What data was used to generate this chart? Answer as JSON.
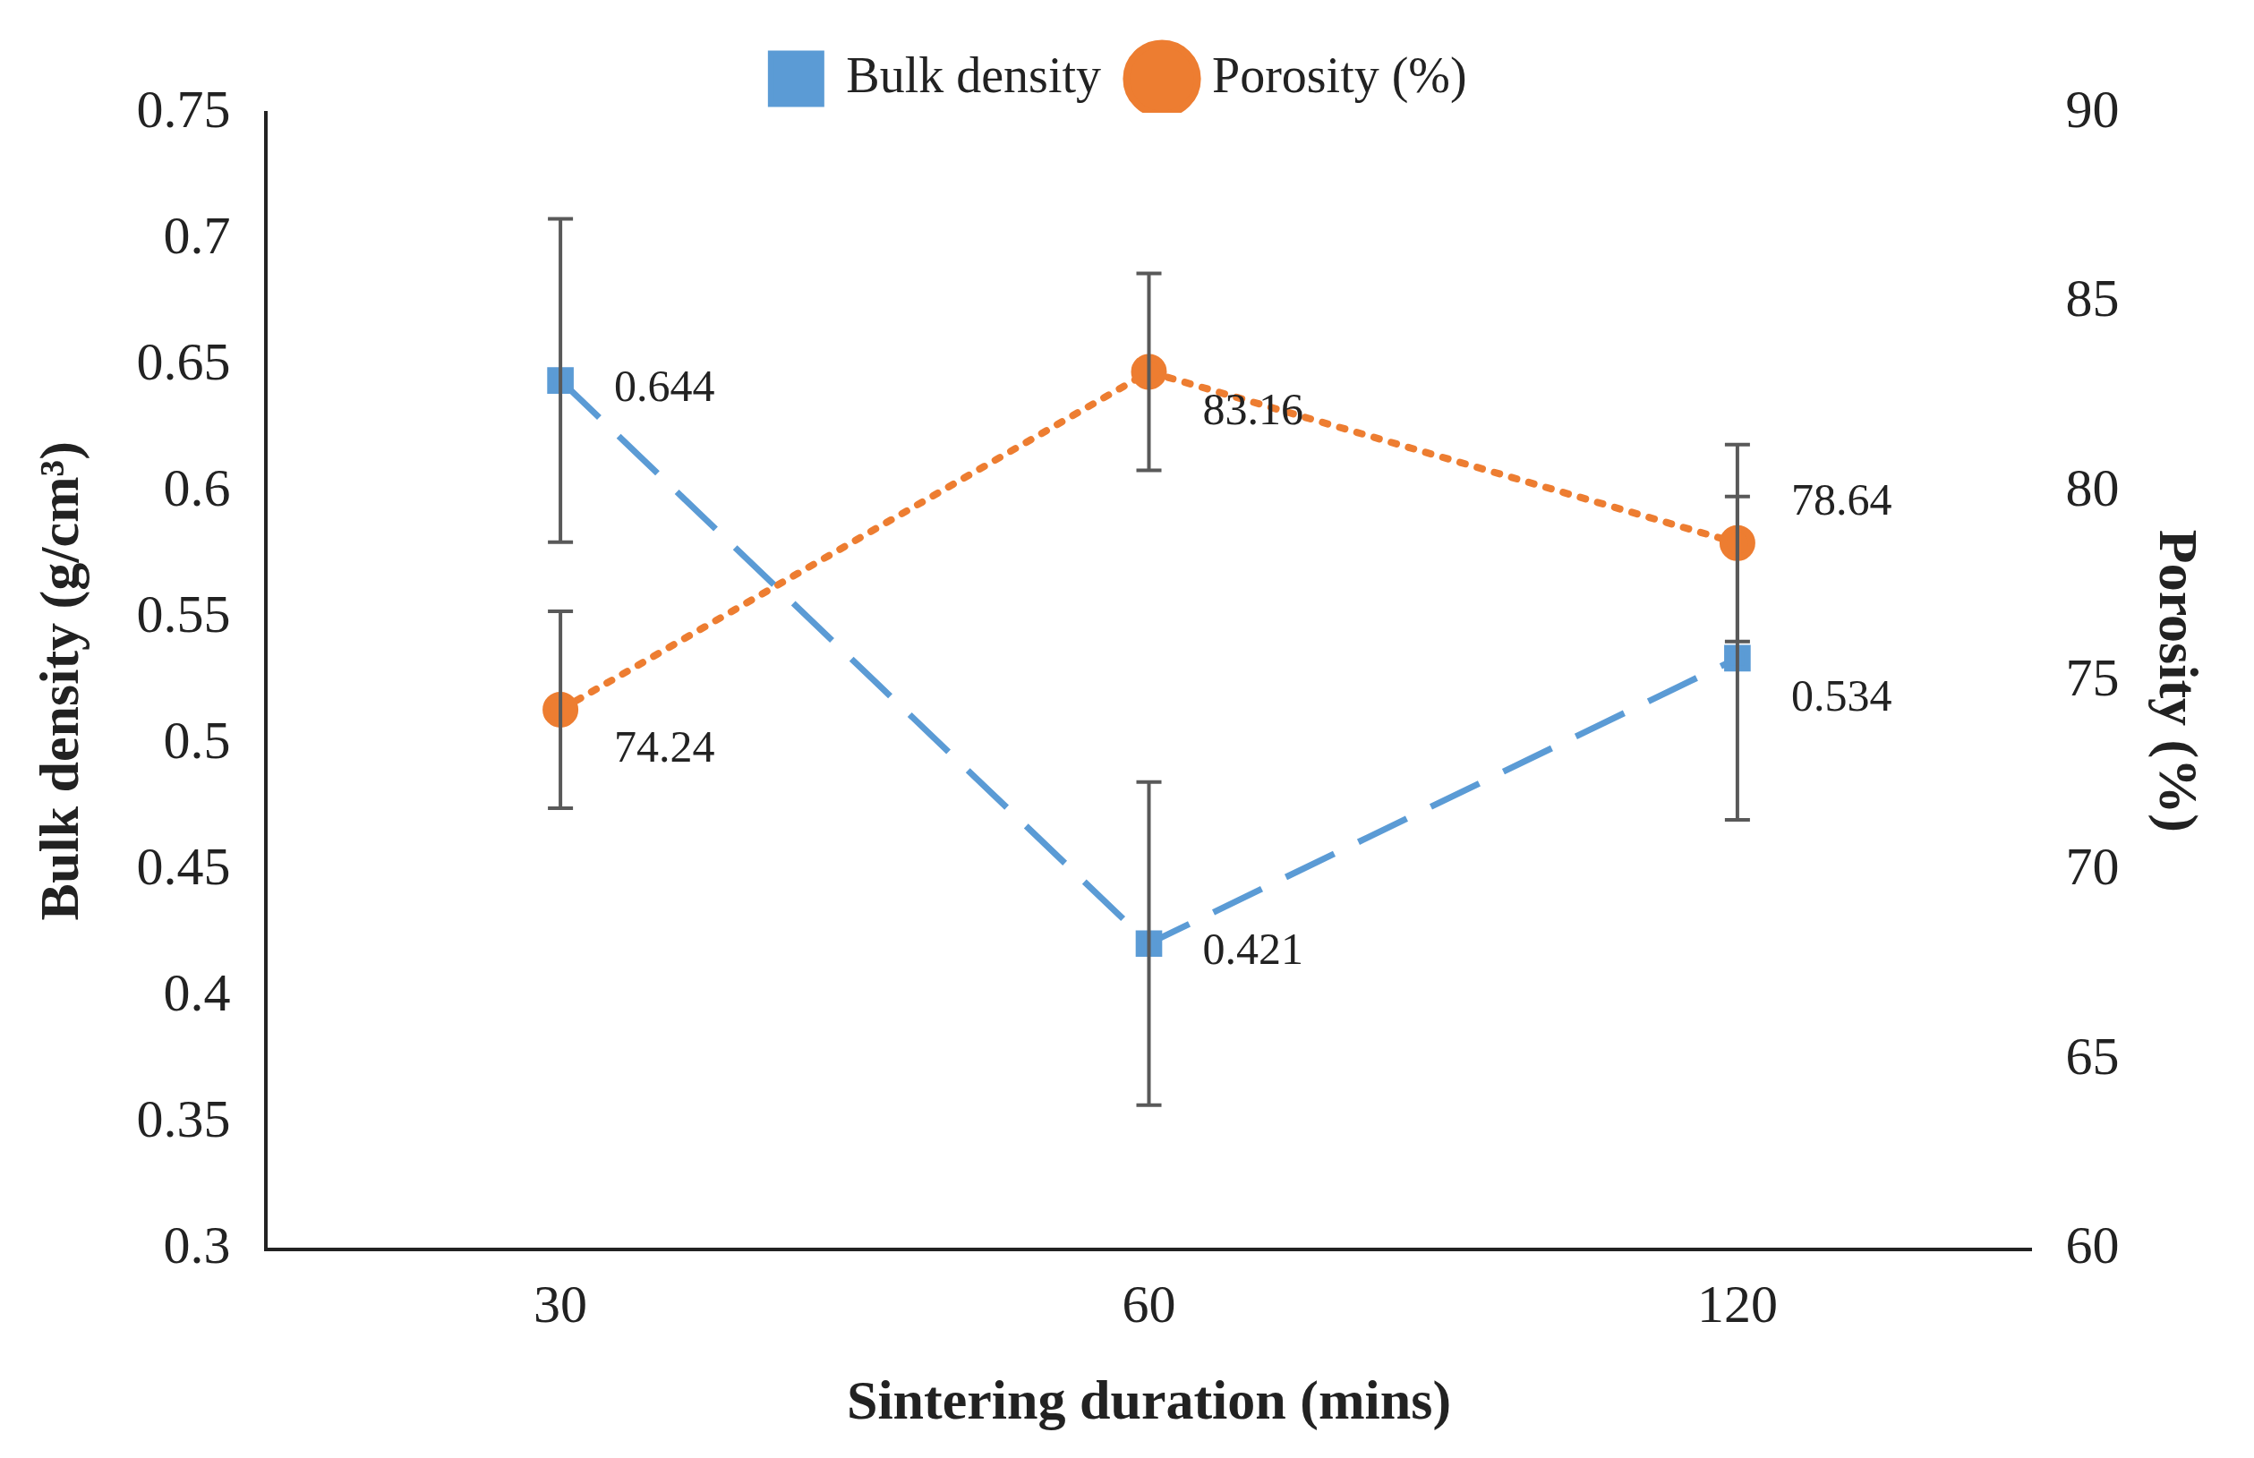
{
  "chart_data": {
    "type": "line",
    "xlabel": "Sintering duration (mins)",
    "ylabel": "Bulk density (g/cm³)",
    "y2label": "Porosity (%)",
    "categories": [
      "30",
      "60",
      "120"
    ],
    "series": [
      {
        "name": "Bulk density",
        "color": "#5b9bd5",
        "values": [
          0.644,
          0.421,
          0.534
        ],
        "errors": [
          0.064,
          0.064,
          0.064
        ],
        "marker": "square",
        "line_style": "dashed"
      },
      {
        "name": "Porosity (%)",
        "color": "#ed7d31",
        "values": [
          74.24,
          83.16,
          78.64
        ],
        "errors": [
          2.6,
          2.6,
          2.6
        ],
        "marker": "circle",
        "line_style": "dotted",
        "axis": "y2"
      }
    ],
    "ylim": [
      0.3,
      0.75
    ],
    "yticks": [
      0.3,
      0.35,
      0.4,
      0.45,
      0.5,
      0.55,
      0.6,
      0.65,
      0.7,
      0.75
    ],
    "y2lim": [
      60,
      90
    ],
    "y2ticks": [
      60,
      65,
      70,
      75,
      80,
      85,
      90
    ],
    "data_labels": true,
    "grid": false,
    "legend": "top"
  }
}
